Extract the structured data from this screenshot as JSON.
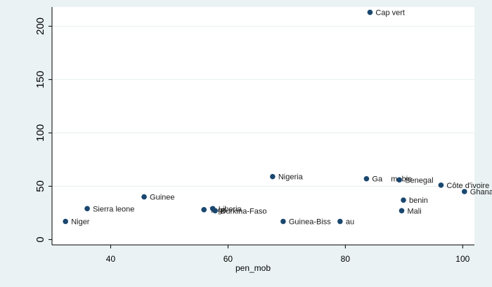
{
  "chart_data": {
    "type": "scatter",
    "title": "",
    "xlabel": "pen_mob",
    "ylabel": "",
    "xlim": [
      30,
      102
    ],
    "ylim": [
      -5,
      218
    ],
    "xticks": [
      {
        "value": 40,
        "label": "40"
      },
      {
        "value": 60,
        "label": "60"
      },
      {
        "value": 80,
        "label": "80"
      },
      {
        "value": 100,
        "label": "100"
      }
    ],
    "yticks": [
      {
        "value": 0,
        "label": "0"
      },
      {
        "value": 50,
        "label": "50"
      },
      {
        "value": 100,
        "label": "100"
      },
      {
        "value": 150,
        "label": "150"
      },
      {
        "value": 200,
        "label": "200"
      }
    ],
    "grid": "horizontal",
    "marker_color": "#1a476f",
    "points": [
      {
        "label": "Cap vert",
        "x": 84.2,
        "y": 213
      },
      {
        "label": "Nigeria",
        "x": 67.6,
        "y": 59
      },
      {
        "label": "Ga    m  bie",
        "x": 83.6,
        "y": 57
      },
      {
        "label": "Senegal",
        "x": 89.2,
        "y": 56
      },
      {
        "label": "Côte d'ivoire",
        "x": 96.3,
        "y": 51
      },
      {
        "label": "Ghana",
        "x": 100.3,
        "y": 45
      },
      {
        "label": "Guinee",
        "x": 45.7,
        "y": 40
      },
      {
        "label": "benin",
        "x": 89.9,
        "y": 37
      },
      {
        "label": "Sierra leone",
        "x": 36.0,
        "y": 29
      },
      {
        "label": "Togo",
        "x": 55.9,
        "y": 28
      },
      {
        "label": "Liberia",
        "x": 57.4,
        "y": 29
      },
      {
        "label": "Burkina-Faso",
        "x": 57.8,
        "y": 27
      },
      {
        "label": "Mali",
        "x": 89.6,
        "y": 27
      },
      {
        "label": "Niger",
        "x": 32.3,
        "y": 17
      },
      {
        "label": "Guinea-Biss",
        "x": 69.4,
        "y": 17
      },
      {
        "label": "au",
        "x": 79.1,
        "y": 17
      }
    ]
  }
}
